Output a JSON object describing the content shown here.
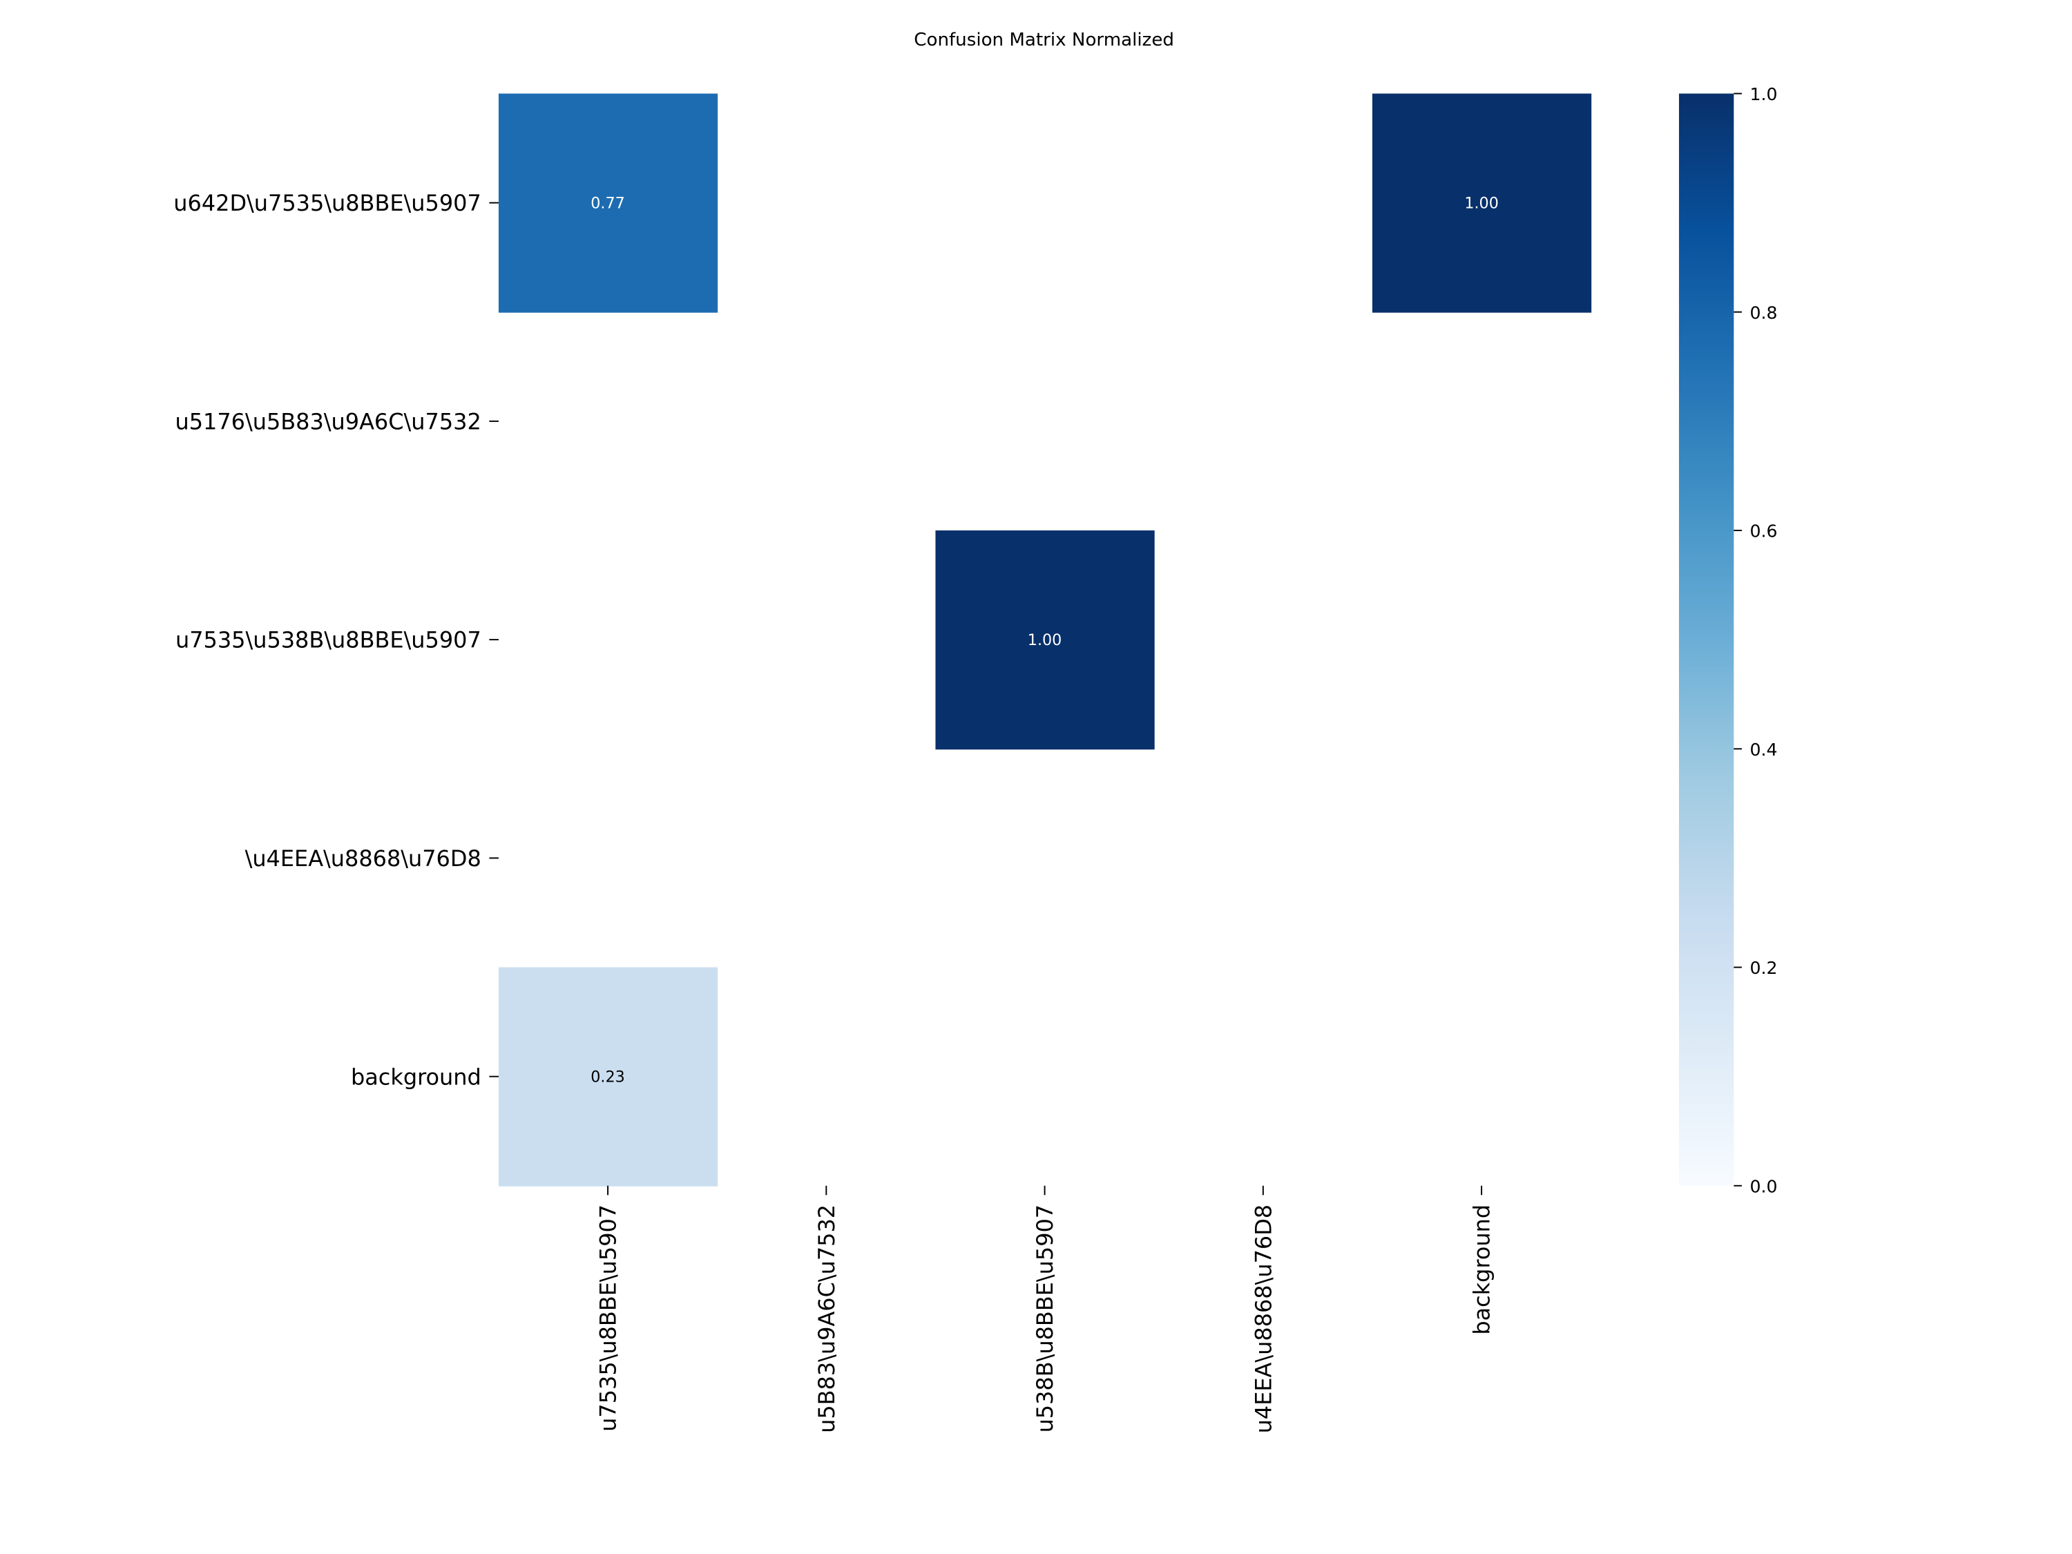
{
  "chart_data": {
    "type": "heatmap",
    "title": "Confusion Matrix Normalized",
    "xlabel": "",
    "ylabel": "",
    "x_tick_labels": [
      "u7535\\u8BBE\\u5907",
      "u5B83\\u9A6C\\u7532",
      "u538B\\u8BBE\\u5907",
      "u4EEA\\u8868\\u76D8",
      "background"
    ],
    "y_tick_labels": [
      "u642D\\u7535\\u8BBE\\u5907",
      "u5176\\u5B83\\u9A6C\\u7532",
      "u7535\\u538B\\u8BBE\\u5907",
      "\\u4EEA\\u8868\\u76D8",
      "background"
    ],
    "values": [
      [
        0.77,
        0,
        0,
        0,
        1.0
      ],
      [
        0,
        0,
        0,
        0,
        0
      ],
      [
        0,
        0,
        1.0,
        0,
        0
      ],
      [
        0,
        0,
        0,
        0,
        0
      ],
      [
        0.23,
        0,
        0,
        0,
        0
      ]
    ],
    "zero_cells_hidden": true,
    "colormap": "Blues",
    "colorbar": {
      "range": [
        0.0,
        1.0
      ],
      "ticks": [
        "0.0",
        "0.2",
        "0.4",
        "0.6",
        "0.8",
        "1.0"
      ]
    },
    "grid": false
  }
}
